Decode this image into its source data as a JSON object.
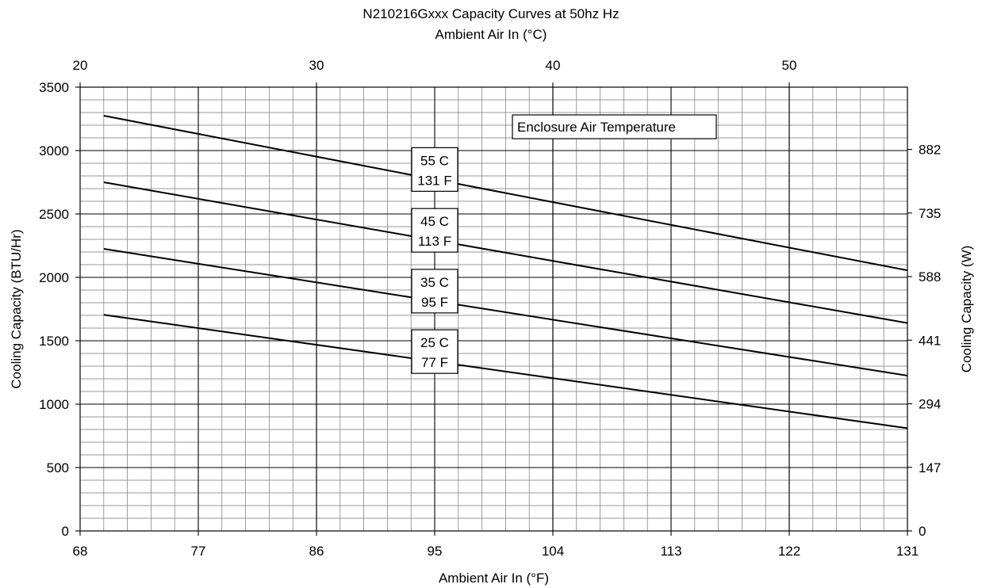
{
  "chart_data": {
    "type": "line",
    "title": "N210216Gxxx Capacity Curves at 50hz Hz",
    "x_top_label": "Ambient Air In (°C)",
    "xlabel": "Ambient Air In (°F)",
    "ylabel": "Cooling Capacity (BTU/Hr)",
    "y_right_label": "Cooling Capacity (W)",
    "legend_title": "Enclosure Air Temperature",
    "xlim": [
      68,
      131
    ],
    "ylim": [
      0,
      3500
    ],
    "x_ticks": [
      "68",
      "77",
      "86",
      "95",
      "104",
      "113",
      "122",
      "131"
    ],
    "x_top_ticks": [
      "20",
      "30",
      "40",
      "50"
    ],
    "y_ticks": [
      "0",
      "500",
      "1000",
      "1500",
      "2000",
      "2500",
      "3000",
      "3500"
    ],
    "y_right_ticks": [
      "0",
      "147",
      "294",
      "441",
      "588",
      "735",
      "882"
    ],
    "grid": true,
    "series": [
      {
        "name": "25 C",
        "name_f": "77 F",
        "x": [
          69.8,
          131
        ],
        "y": [
          1705,
          810
        ],
        "label_at_x": 95
      },
      {
        "name": "35 C",
        "name_f": "95 F",
        "x": [
          69.8,
          131
        ],
        "y": [
          2225,
          1225
        ],
        "label_at_x": 95
      },
      {
        "name": "45 C",
        "name_f": "113 F",
        "x": [
          69.8,
          131
        ],
        "y": [
          2750,
          1640
        ],
        "label_at_x": 95
      },
      {
        "name": "55 C",
        "name_f": "131 F",
        "x": [
          69.8,
          131
        ],
        "y": [
          3275,
          2055
        ],
        "label_at_x": 95
      }
    ]
  }
}
